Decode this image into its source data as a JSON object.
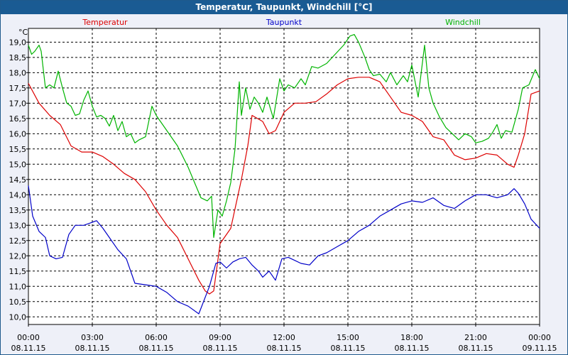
{
  "window": {
    "title": "Temperatur, Taupunkt, Windchill [°C]"
  },
  "chart_data": {
    "type": "line",
    "title": "Temperatur, Taupunkt, Windchill [°C]",
    "ylabel": "°C",
    "xlabel": "",
    "ylim": [
      9.75,
      19.45
    ],
    "xlim": [
      0,
      24
    ],
    "grid": true,
    "legend_placement": "top",
    "y_ticks": [
      "10,0",
      "10,5",
      "11,0",
      "11,5",
      "12,0",
      "12,5",
      "13,0",
      "13,5",
      "14,0",
      "14,5",
      "15,0",
      "15,5",
      "16,0",
      "16,5",
      "17,0",
      "17,5",
      "18,0",
      "18,5",
      "19,0"
    ],
    "y_tick_values": [
      10,
      10.5,
      11,
      11.5,
      12,
      12.5,
      13,
      13.5,
      14,
      14.5,
      15,
      15.5,
      16,
      16.5,
      17,
      17.5,
      18,
      18.5,
      19
    ],
    "x_ticks": [
      {
        "time": "00:00",
        "date": "08.11.15"
      },
      {
        "time": "03:00",
        "date": "08.11.15"
      },
      {
        "time": "06:00",
        "date": "08.11.15"
      },
      {
        "time": "09:00",
        "date": "08.11.15"
      },
      {
        "time": "12:00",
        "date": "08.11.15"
      },
      {
        "time": "15:00",
        "date": "08.11.15"
      },
      {
        "time": "18:00",
        "date": "08.11.15"
      },
      {
        "time": "21:00",
        "date": "08.11.15"
      },
      {
        "time": "00:00",
        "date": "09.11.15"
      }
    ],
    "x_tick_values": [
      0,
      3,
      6,
      9,
      12,
      15,
      18,
      21,
      24
    ],
    "series": [
      {
        "name": "Temperatur",
        "color": "#dd0000",
        "x": [
          0,
          0.5,
          1,
          1.5,
          2,
          2.5,
          3,
          3.5,
          4,
          4.5,
          5,
          5.5,
          6,
          6.5,
          7,
          7.5,
          8,
          8.3,
          8.5,
          8.7,
          9,
          9.5,
          10,
          10.3,
          10.5,
          11,
          11.3,
          11.6,
          12,
          12.5,
          13,
          13.5,
          14,
          14.5,
          15,
          15.5,
          16,
          16.5,
          17,
          17.5,
          18,
          18.5,
          19,
          19.5,
          20,
          20.5,
          21,
          21.5,
          22,
          22.5,
          22.8,
          23,
          23.3,
          23.6,
          24
        ],
        "values": [
          17.65,
          17.0,
          16.6,
          16.3,
          15.6,
          15.4,
          15.4,
          15.25,
          15.0,
          14.7,
          14.5,
          14.1,
          13.5,
          13.0,
          12.6,
          11.9,
          11.2,
          10.85,
          10.75,
          10.85,
          12.4,
          12.9,
          14.5,
          15.6,
          16.6,
          16.4,
          16.0,
          16.1,
          16.7,
          17.0,
          17.0,
          17.05,
          17.3,
          17.6,
          17.8,
          17.85,
          17.85,
          17.7,
          17.2,
          16.7,
          16.6,
          16.4,
          15.9,
          15.8,
          15.3,
          15.15,
          15.2,
          15.35,
          15.3,
          15.0,
          14.9,
          15.3,
          16.0,
          17.3,
          17.4
        ]
      },
      {
        "name": "Taupunkt",
        "color": "#0000c8",
        "x": [
          0,
          0.2,
          0.5,
          0.8,
          1,
          1.3,
          1.6,
          1.9,
          2.2,
          2.6,
          3,
          3.2,
          3.5,
          3.8,
          4.2,
          4.6,
          5,
          5.5,
          6,
          6.5,
          7,
          7.5,
          8,
          8.5,
          8.8,
          9,
          9.3,
          9.6,
          9.9,
          10.2,
          10.5,
          10.8,
          11,
          11.3,
          11.6,
          11.9,
          12.2,
          12.5,
          12.8,
          13.2,
          13.6,
          14,
          14.5,
          15,
          15.5,
          16,
          16.5,
          17,
          17.5,
          18,
          18.5,
          19,
          19.5,
          20,
          20.5,
          21,
          21.5,
          22,
          22.5,
          22.8,
          23,
          23.3,
          23.6,
          24
        ],
        "values": [
          14.3,
          13.3,
          12.8,
          12.6,
          12.0,
          11.9,
          11.95,
          12.7,
          13.0,
          13.0,
          13.1,
          13.15,
          12.9,
          12.6,
          12.2,
          11.9,
          11.1,
          11.05,
          11.0,
          10.8,
          10.5,
          10.35,
          10.1,
          11.0,
          11.75,
          11.8,
          11.6,
          11.8,
          11.9,
          11.95,
          11.7,
          11.5,
          11.3,
          11.5,
          11.2,
          11.9,
          11.95,
          11.85,
          11.75,
          11.7,
          12.0,
          12.1,
          12.3,
          12.5,
          12.8,
          13.0,
          13.3,
          13.5,
          13.7,
          13.8,
          13.75,
          13.9,
          13.65,
          13.55,
          13.8,
          14.0,
          14.0,
          13.9,
          14.0,
          14.2,
          14.05,
          13.7,
          13.2,
          12.9
        ]
      },
      {
        "name": "Windchill",
        "color": "#00b400",
        "x": [
          0,
          0.15,
          0.3,
          0.5,
          0.6,
          0.8,
          1,
          1.2,
          1.4,
          1.6,
          1.8,
          2,
          2.2,
          2.4,
          2.6,
          2.8,
          3,
          3.2,
          3.4,
          3.6,
          3.8,
          4,
          4.2,
          4.4,
          4.6,
          4.8,
          5,
          5.2,
          5.5,
          5.8,
          6,
          6.5,
          7,
          7.5,
          7.8,
          8.1,
          8.4,
          8.6,
          8.7,
          8.9,
          9.1,
          9.3,
          9.5,
          9.7,
          9.9,
          10,
          10.2,
          10.4,
          10.6,
          10.8,
          11,
          11.2,
          11.5,
          11.8,
          12,
          12.2,
          12.5,
          12.8,
          13,
          13.3,
          13.6,
          14,
          14.4,
          14.8,
          15.1,
          15.3,
          15.5,
          15.8,
          16,
          16.2,
          16.5,
          16.8,
          17,
          17.3,
          17.6,
          17.8,
          18,
          18.3,
          18.6,
          18.8,
          19,
          19.3,
          19.6,
          19.9,
          20.2,
          20.5,
          20.8,
          21,
          21.3,
          21.6,
          21.8,
          22,
          22.2,
          22.4,
          22.7,
          23,
          23.2,
          23.5,
          23.8,
          24
        ],
        "values": [
          18.9,
          18.6,
          18.7,
          18.9,
          18.7,
          17.5,
          17.6,
          17.5,
          18.05,
          17.5,
          17.0,
          16.9,
          16.6,
          16.65,
          17.1,
          17.4,
          16.9,
          16.55,
          16.6,
          16.5,
          16.25,
          16.6,
          16.1,
          16.4,
          15.9,
          16.0,
          15.7,
          15.8,
          15.9,
          16.9,
          16.6,
          16.1,
          15.6,
          14.9,
          14.4,
          13.9,
          13.8,
          13.95,
          12.6,
          13.5,
          13.3,
          13.8,
          14.4,
          15.5,
          17.7,
          16.6,
          17.5,
          16.8,
          17.2,
          17.0,
          16.7,
          17.2,
          16.5,
          17.8,
          17.4,
          17.6,
          17.5,
          17.8,
          17.6,
          18.2,
          18.15,
          18.3,
          18.6,
          18.9,
          19.2,
          19.25,
          19.0,
          18.5,
          18.1,
          17.9,
          17.95,
          17.7,
          18.0,
          17.6,
          17.9,
          17.7,
          18.25,
          17.2,
          18.9,
          17.5,
          17.0,
          16.55,
          16.2,
          16.0,
          15.8,
          16.0,
          15.9,
          15.7,
          15.75,
          15.85,
          16.05,
          16.3,
          15.85,
          16.1,
          16.05,
          16.8,
          17.5,
          17.6,
          18.1,
          17.8
        ]
      }
    ]
  }
}
